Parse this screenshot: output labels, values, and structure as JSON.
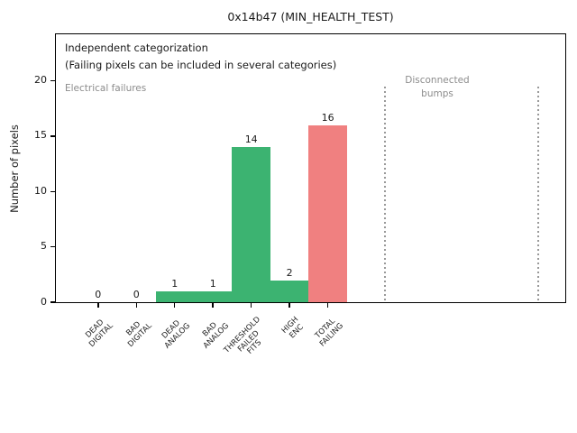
{
  "chart_data": {
    "type": "bar",
    "title": "0x14b47 (MIN_HEALTH_TEST)",
    "ylabel": "Number of pixels",
    "categories": [
      "DEAD\nDIGITAL",
      "BAD\nDIGITAL",
      "DEAD\nANALOG",
      "BAD\nANALOG",
      "THRESHOLD\nFAILED\nFITS",
      "HIGH\nENC",
      "TOTAL\nFAILING"
    ],
    "values": [
      0,
      0,
      1,
      1,
      14,
      2,
      16
    ],
    "value_labels": [
      "0",
      "0",
      "1",
      "1",
      "14",
      "2",
      "16"
    ],
    "bar_colors": [
      "#3cb371",
      "#3cb371",
      "#3cb371",
      "#3cb371",
      "#3cb371",
      "#3cb371",
      "#f08080"
    ],
    "yticks": [
      0,
      5,
      10,
      15,
      20
    ],
    "ylim": [
      0,
      24.2
    ],
    "xlim": [
      -1.1,
      12.2
    ],
    "bar_width": 1.0,
    "grid": false,
    "legend_position": "none",
    "vlines": {
      "x": [
        7.5,
        11.5
      ],
      "ymin": 0,
      "ymax": 19.5,
      "style": "dotted",
      "color": "#999999"
    }
  },
  "annotations": {
    "independent_line1": "Independent categorization",
    "independent_line2": "(Failing pixels can be included in several categories)",
    "electrical": "Electrical failures",
    "disconnected": "Disconnected\nbumps"
  },
  "colors": {
    "bar_green": "#3cb371",
    "bar_total_red": "#f08080",
    "muted_annotation_text": "#8c8c8c",
    "text": "#1a1a1a",
    "separator_line": "#999999",
    "background": "#ffffff"
  }
}
